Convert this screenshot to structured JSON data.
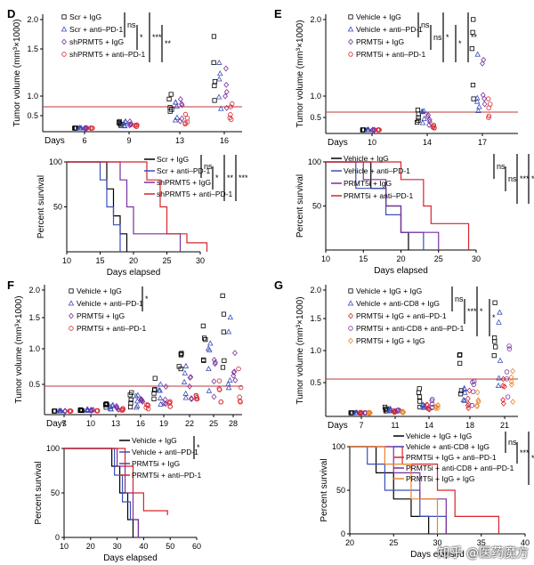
{
  "figure": {
    "watermark": "知乎 @医药魔方",
    "ylabel_volume": "Tumor volume (mm³×1000)",
    "ylabel_survival": "Percent survival",
    "xlabel_survival": "Days elapsed",
    "days_word": "Days",
    "colors": {
      "black": "#000000",
      "blue": "#3b4fb8",
      "purple": "#7a2f9e",
      "red": "#d6242b",
      "orange": "#e8862a",
      "line": "#b83a3a"
    }
  },
  "panels": [
    {
      "letter": "D",
      "growth": {
        "yticks": [
          "2.0",
          "1.5",
          "1.0",
          "0.5"
        ],
        "xticks": [
          "6",
          "9",
          "13",
          "16"
        ],
        "legend": [
          "Scr + IgG",
          "Scr + anti–PD-1",
          "shPRMT5 + IgG",
          "shPRMT5 + anti–PD-1"
        ],
        "sig": [
          "ns",
          "*",
          "***",
          "**"
        ]
      },
      "survival": {
        "yticks": [
          "100",
          "50"
        ],
        "xticks": [
          "10",
          "15",
          "20",
          "25",
          "30"
        ],
        "legend": [
          "Scr + IgG",
          "Scr + anti–PD-1",
          "shPRMT5 + IgG",
          "shPRMT5 + anti–PD-1"
        ],
        "sig": [
          "ns",
          "*",
          "**",
          "***"
        ]
      }
    },
    {
      "letter": "E",
      "growth": {
        "yticks": [
          "2.0",
          "1.0",
          "0.5"
        ],
        "xticks": [
          "10",
          "14",
          "17"
        ],
        "legend": [
          "Vehicle + IgG",
          "Vehicle + anti–PD-1",
          "PRMT5i + IgG",
          "PRMT5i + anti–PD-1"
        ],
        "sig": [
          "ns",
          "ns",
          "*",
          "*",
          "**"
        ]
      },
      "survival": {
        "yticks": [
          "100",
          "50"
        ],
        "xticks": [
          "10",
          "15",
          "20",
          "25",
          "30"
        ],
        "legend": [
          "Vehicle + IgG",
          "Vehicle + anti–PD-1",
          "PRMT5i + IgG",
          "PRMT5i + anti–PD-1"
        ],
        "sig": [
          "ns",
          "ns",
          "***",
          "**"
        ]
      }
    },
    {
      "letter": "F",
      "growth": {
        "yticks": [
          "2.0",
          "1.5",
          "1.0",
          "0.5"
        ],
        "xticks": [
          "7",
          "10",
          "13",
          "16",
          "19",
          "22",
          "25",
          "28"
        ],
        "legend": [
          "Vehicle + IgG",
          "Vehicle + anti–PD-1",
          "PRMT5i + IgG",
          "PRMT5i + anti–PD-1"
        ],
        "sig": [
          "*"
        ]
      },
      "survival": {
        "yticks": [
          "100",
          "50",
          "0"
        ],
        "xticks": [
          "10",
          "20",
          "30",
          "40",
          "50",
          "60"
        ],
        "legend": [
          "Vehicle + IgG",
          "Vehicle + anti–PD-1",
          "PRMT5i + IgG",
          "PRMT5i + anti–PD-1"
        ],
        "sig": [
          "*"
        ]
      }
    },
    {
      "letter": "G",
      "growth": {
        "yticks": [
          "2.0",
          "1.5",
          "1.0",
          "0.5"
        ],
        "xticks": [
          "7",
          "11",
          "14",
          "18",
          "21"
        ],
        "legend": [
          "Vehicle + IgG + IgG",
          "Vehicle + anti-CD8 + IgG",
          "PRMT5i + IgG + anti–PD-1",
          "PRMT5i + anti-CD8 + anti–PD-1",
          "PRMT5i + IgG + IgG"
        ],
        "sig": [
          "ns",
          "***",
          "*",
          "*"
        ]
      },
      "survival": {
        "yticks": [
          "100",
          "50",
          "0"
        ],
        "xticks": [
          "20",
          "25",
          "30",
          "35",
          "40"
        ],
        "legend": [
          "Vehicle + IgG + IgG",
          "Vehicle + anti-CD8 + IgG",
          "PRMT5i + IgG + anti–PD-1",
          "PRMT5i + anti-CD8 + anti–PD-1",
          "PRMT5i + IgG + IgG"
        ],
        "sig": [
          "ns",
          "***",
          "**",
          "**"
        ]
      }
    }
  ]
}
